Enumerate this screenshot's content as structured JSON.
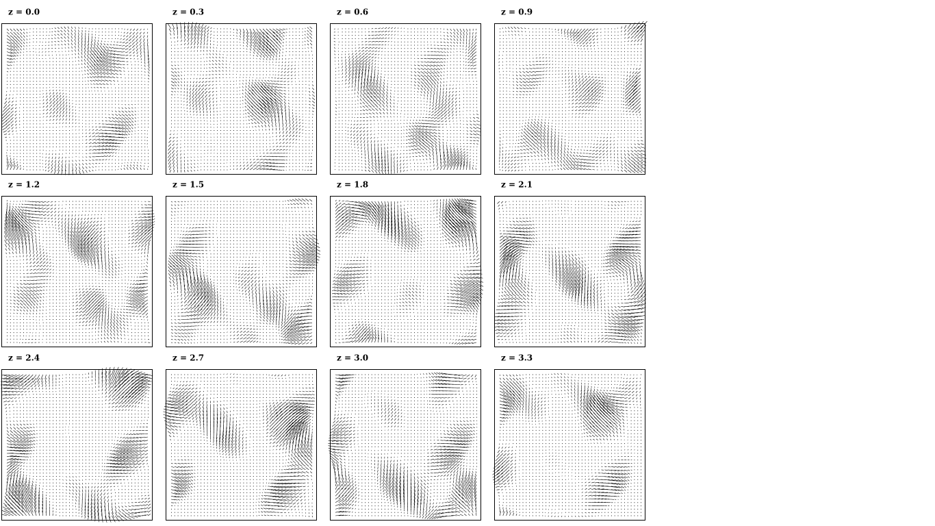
{
  "panels": [
    {
      "label": "z = 0.0"
    },
    {
      "label": "z = 0.3"
    },
    {
      "label": "z = 0.6"
    },
    {
      "label": "z = 0.9"
    },
    {
      "label": "z = 1.2"
    },
    {
      "label": "z = 1.5"
    },
    {
      "label": "z = 1.8"
    },
    {
      "label": "z = 2.1"
    },
    {
      "label": "z = 2.4"
    },
    {
      "label": "z = 2.7"
    },
    {
      "label": "z = 3.0"
    },
    {
      "label": "z = 3.3"
    }
  ]
}
